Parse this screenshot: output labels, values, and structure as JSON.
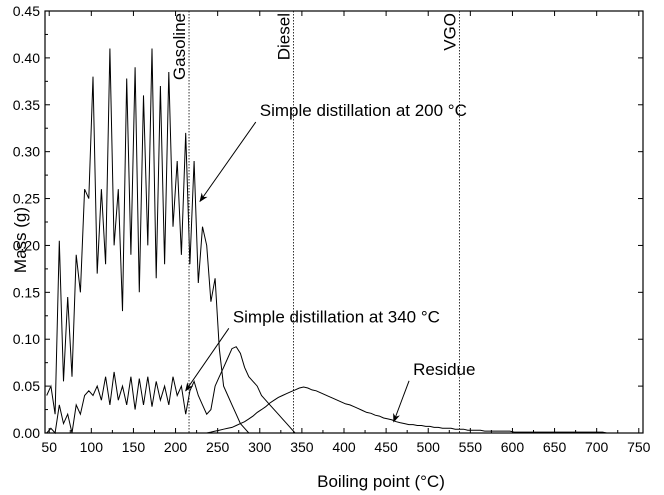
{
  "chart_data": {
    "type": "line",
    "xlabel": "Boiling point (°C)",
    "ylabel": "Mass (g)",
    "xlim": [
      45,
      755
    ],
    "ylim": [
      0,
      0.45
    ],
    "x_ticks": [
      50,
      100,
      150,
      200,
      250,
      300,
      350,
      400,
      450,
      500,
      550,
      600,
      650,
      700,
      750
    ],
    "y_ticks": [
      0.0,
      0.05,
      0.1,
      0.15,
      0.2,
      0.25,
      0.3,
      0.35,
      0.4,
      0.45
    ],
    "y_tick_labels": [
      "0.00",
      "0.05",
      "0.10",
      "0.15",
      "0.20",
      "0.25",
      "0.30",
      "0.35",
      "0.40",
      "0.45"
    ],
    "grid": false,
    "line_color": "#000000",
    "reference_lines": [
      {
        "label": "Gasoline",
        "x": 216
      },
      {
        "label": "Diesel",
        "x": 340
      },
      {
        "label": "VGO",
        "x": 537
      }
    ],
    "annotations": [
      {
        "text": "Simple distillation at 200 °C",
        "text_at": [
          300,
          0.338
        ],
        "arrow_to": [
          229,
          0.247
        ]
      },
      {
        "text": "Simple distillation at 340 °C",
        "text_at": [
          268,
          0.118
        ],
        "arrow_to": [
          212,
          0.045
        ]
      },
      {
        "text": "Residue",
        "text_at": [
          482,
          0.062
        ],
        "arrow_to": [
          459,
          0.012
        ]
      }
    ],
    "series": [
      {
        "x": [
          47,
          52,
          57,
          62,
          67,
          72,
          77,
          82,
          87,
          92,
          97,
          102,
          107,
          112,
          117,
          122,
          127,
          132,
          137,
          142,
          147,
          152,
          157,
          162,
          167,
          172,
          177,
          182,
          187,
          192,
          197,
          202,
          207,
          212,
          217,
          222,
          227,
          232,
          237,
          242,
          247,
          252,
          257,
          262,
          267,
          272,
          277,
          282,
          287
        ],
        "values": [
          0.04,
          0.05,
          0.02,
          0.205,
          0.055,
          0.145,
          0.06,
          0.19,
          0.15,
          0.26,
          0.25,
          0.38,
          0.17,
          0.26,
          0.18,
          0.41,
          0.2,
          0.26,
          0.13,
          0.378,
          0.19,
          0.39,
          0.15,
          0.36,
          0.2,
          0.41,
          0.165,
          0.37,
          0.18,
          0.385,
          0.22,
          0.29,
          0.19,
          0.32,
          0.18,
          0.29,
          0.16,
          0.22,
          0.2,
          0.14,
          0.165,
          0.09,
          0.05,
          0.04,
          0.03,
          0.02,
          0.01,
          0.005,
          0.0
        ]
      },
      {
        "x": [
          47,
          52,
          57,
          62,
          67,
          72,
          77,
          82,
          87,
          92,
          97,
          102,
          107,
          112,
          117,
          122,
          127,
          132,
          137,
          142,
          147,
          152,
          157,
          162,
          167,
          172,
          177,
          182,
          187,
          192,
          197,
          202,
          207,
          212,
          217,
          222,
          227,
          232,
          237,
          242,
          247,
          252,
          257,
          262,
          267,
          272,
          277,
          282,
          287,
          292,
          297,
          302,
          307,
          312,
          317,
          322,
          327,
          332,
          337,
          342
        ],
        "values": [
          0.0,
          0.005,
          0.0,
          0.03,
          0.01,
          0.02,
          0.0,
          0.03,
          0.02,
          0.04,
          0.045,
          0.04,
          0.05,
          0.035,
          0.06,
          0.03,
          0.065,
          0.035,
          0.05,
          0.03,
          0.06,
          0.025,
          0.058,
          0.03,
          0.06,
          0.028,
          0.055,
          0.035,
          0.05,
          0.03,
          0.06,
          0.04,
          0.05,
          0.02,
          0.045,
          0.055,
          0.04,
          0.03,
          0.02,
          0.025,
          0.05,
          0.06,
          0.07,
          0.08,
          0.09,
          0.092,
          0.085,
          0.07,
          0.06,
          0.055,
          0.05,
          0.04,
          0.035,
          0.03,
          0.025,
          0.02,
          0.015,
          0.01,
          0.005,
          0.0
        ]
      },
      {
        "x": [
          237,
          242,
          247,
          252,
          257,
          262,
          267,
          272,
          277,
          282,
          287,
          292,
          297,
          302,
          307,
          312,
          317,
          322,
          327,
          332,
          337,
          342,
          347,
          352,
          357,
          362,
          367,
          372,
          377,
          382,
          387,
          392,
          397,
          402,
          407,
          412,
          417,
          422,
          427,
          432,
          437,
          442,
          447,
          452,
          457,
          462,
          467,
          472,
          477,
          482,
          487,
          492,
          497,
          502,
          507,
          512,
          517,
          522,
          527,
          532,
          537,
          542,
          547,
          552,
          557,
          562,
          567,
          572,
          577,
          582,
          587,
          592,
          597,
          602,
          607,
          612,
          617,
          622,
          627,
          632,
          637,
          642,
          647,
          652,
          657,
          662,
          667,
          672,
          677,
          682,
          687,
          692,
          697,
          702,
          707,
          712,
          717,
          722,
          727,
          732,
          737
        ],
        "values": [
          0.0,
          0.001,
          0.002,
          0.003,
          0.004,
          0.005,
          0.006,
          0.008,
          0.01,
          0.012,
          0.015,
          0.018,
          0.022,
          0.025,
          0.028,
          0.032,
          0.035,
          0.038,
          0.04,
          0.042,
          0.044,
          0.046,
          0.048,
          0.049,
          0.048,
          0.046,
          0.045,
          0.043,
          0.041,
          0.039,
          0.037,
          0.035,
          0.033,
          0.031,
          0.03,
          0.028,
          0.026,
          0.024,
          0.022,
          0.021,
          0.019,
          0.018,
          0.016,
          0.015,
          0.014,
          0.012,
          0.011,
          0.01,
          0.009,
          0.009,
          0.008,
          0.008,
          0.007,
          0.007,
          0.006,
          0.006,
          0.005,
          0.005,
          0.005,
          0.004,
          0.004,
          0.004,
          0.003,
          0.003,
          0.003,
          0.003,
          0.002,
          0.002,
          0.002,
          0.002,
          0.002,
          0.002,
          0.002,
          0.001,
          0.001,
          0.001,
          0.001,
          0.001,
          0.001,
          0.001,
          0.001,
          0.001,
          0.001,
          0.001,
          0.001,
          0.001,
          0.001,
          0.001,
          0.001,
          0.001,
          0.001,
          0.001,
          0.001,
          0.001,
          0.001,
          0.0,
          0.0,
          0.0,
          0.0,
          0.0,
          0.0
        ]
      }
    ]
  }
}
